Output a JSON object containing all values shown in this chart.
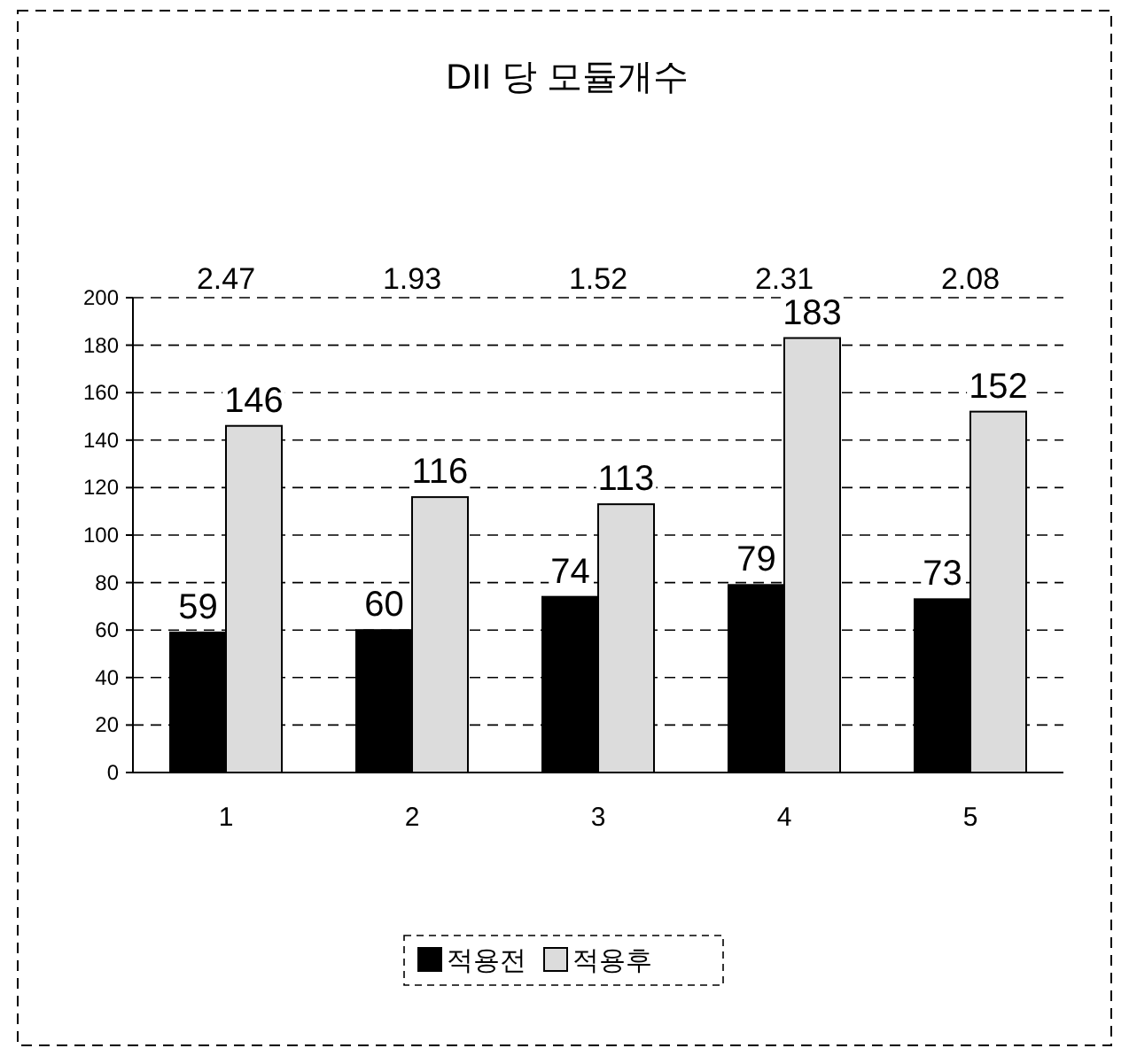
{
  "chart_data": {
    "type": "bar",
    "title": "DII 당 모듈개수",
    "categories": [
      "1",
      "2",
      "3",
      "4",
      "5"
    ],
    "series": [
      {
        "name": "적용전",
        "color": "#000000",
        "values": [
          59,
          60,
          74,
          79,
          73
        ]
      },
      {
        "name": "적용후",
        "color": "#dcdcdc",
        "values": [
          146,
          116,
          113,
          183,
          152
        ]
      }
    ],
    "ylim": [
      0,
      200
    ],
    "yticks": [
      0,
      20,
      40,
      60,
      80,
      100,
      120,
      140,
      160,
      180,
      200
    ],
    "grid": "y",
    "legend": "bottom",
    "data_labels": true,
    "annotations": [
      "2.47",
      "1.93",
      "1.52",
      "2.31",
      "2.08"
    ]
  }
}
